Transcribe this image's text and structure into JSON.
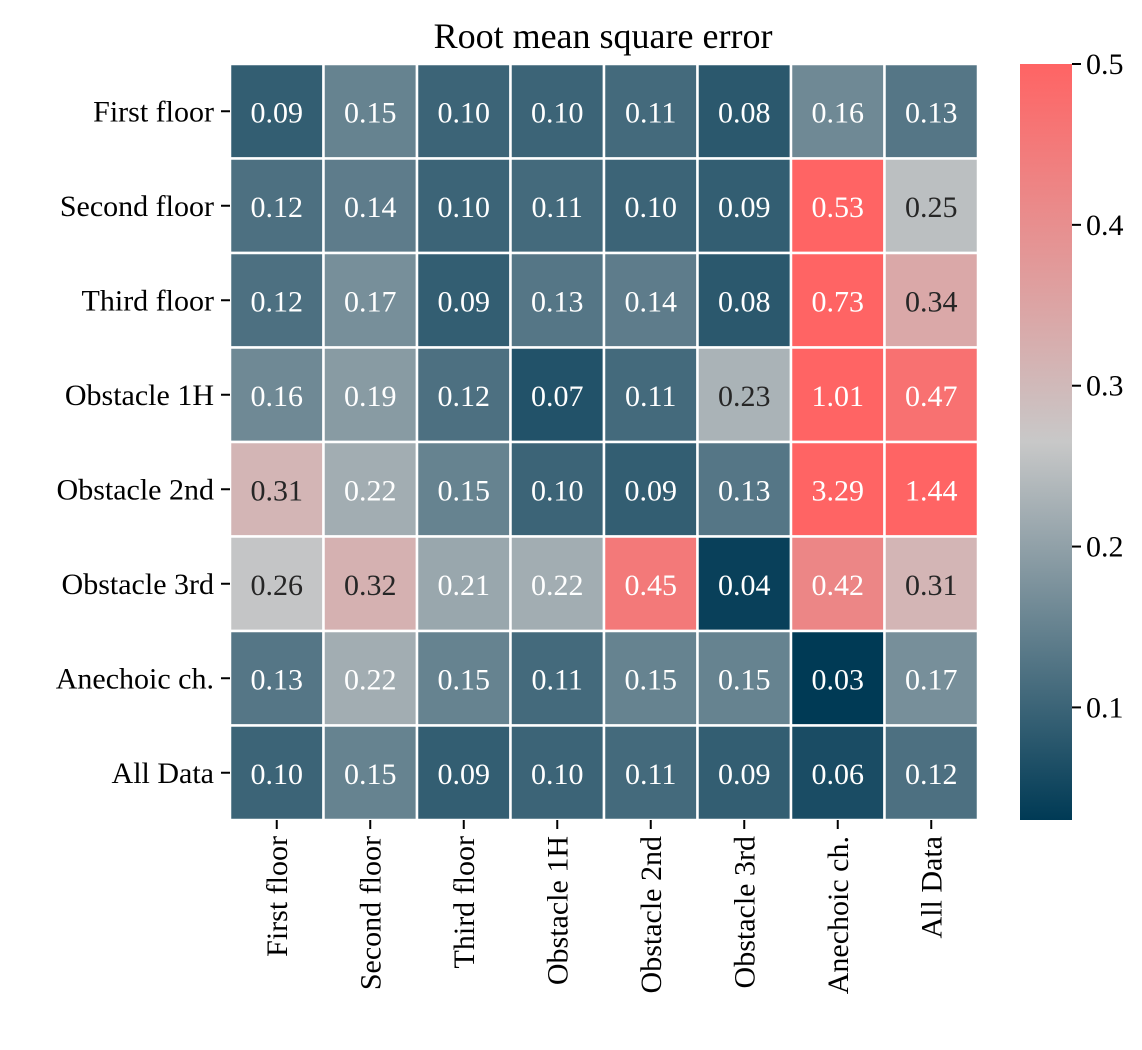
{
  "chart_data": {
    "type": "heatmap",
    "title": "Root mean square error",
    "xlabel": "",
    "ylabel": "",
    "row_labels": [
      "First floor",
      "Second floor",
      "Third floor",
      "Obstacle 1H",
      "Obstacle 2nd",
      "Obstacle 3rd",
      "Anechoic ch.",
      "All Data"
    ],
    "col_labels": [
      "First floor",
      "Second floor",
      "Third floor",
      "Obstacle 1H",
      "Obstacle 2nd",
      "Obstacle 3rd",
      "Anechoic ch.",
      "All Data"
    ],
    "values": [
      [
        0.09,
        0.15,
        0.1,
        0.1,
        0.11,
        0.08,
        0.16,
        0.13
      ],
      [
        0.12,
        0.14,
        0.1,
        0.11,
        0.1,
        0.09,
        0.53,
        0.25
      ],
      [
        0.12,
        0.17,
        0.09,
        0.13,
        0.14,
        0.08,
        0.73,
        0.34
      ],
      [
        0.16,
        0.19,
        0.12,
        0.07,
        0.11,
        0.23,
        1.01,
        0.47
      ],
      [
        0.31,
        0.22,
        0.15,
        0.1,
        0.09,
        0.13,
        3.29,
        1.44
      ],
      [
        0.26,
        0.32,
        0.21,
        0.22,
        0.45,
        0.04,
        0.42,
        0.31
      ],
      [
        0.13,
        0.22,
        0.15,
        0.11,
        0.15,
        0.15,
        0.03,
        0.17
      ],
      [
        0.1,
        0.15,
        0.09,
        0.1,
        0.11,
        0.09,
        0.06,
        0.12
      ]
    ],
    "value_format": "2 decimals",
    "colorbar": {
      "vmin": 0.03,
      "vmax": 0.5,
      "ticks": [
        0.1,
        0.2,
        0.3,
        0.4,
        0.5
      ],
      "tick_labels": [
        "0.1",
        "0.2",
        "0.3",
        "0.4",
        "0.5"
      ],
      "colors": [
        "#003a55",
        "#c8c8c8",
        "#ff6464"
      ]
    },
    "cell_border_color": "#ffffff",
    "label_colors": {
      "dark": "#262626",
      "light": "#ffffff"
    }
  }
}
